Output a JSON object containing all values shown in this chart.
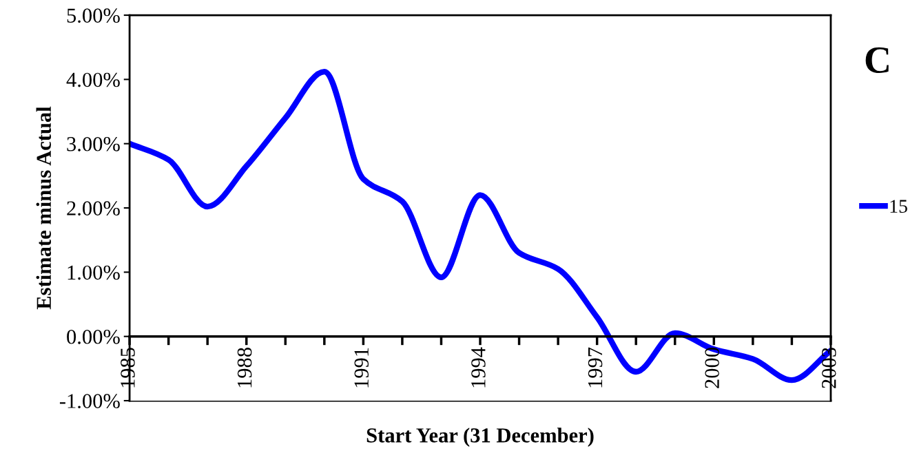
{
  "chart_data": {
    "type": "line",
    "xlabel": "Start Year (31 December)",
    "ylabel": "Estimate minus Actual",
    "x": [
      1985,
      1986,
      1987,
      1988,
      1989,
      1990,
      1991,
      1992,
      1993,
      1994,
      1995,
      1996,
      1997,
      1998,
      1999,
      2000,
      2001,
      2002,
      2003
    ],
    "series": [
      {
        "name": "15",
        "color": "#0000ff",
        "values": [
          3.0,
          2.75,
          2.02,
          2.65,
          3.4,
          4.12,
          2.45,
          2.1,
          0.92,
          2.2,
          1.3,
          1.05,
          0.3,
          -0.55,
          0.05,
          -0.2,
          -0.35,
          -0.68,
          -0.22
        ]
      }
    ],
    "xlim": [
      1985,
      2003
    ],
    "xticks": [
      1985,
      {
        "value": 1986,
        "label": null
      },
      {
        "value": 1987,
        "label": null
      },
      1988,
      {
        "value": 1989,
        "label": null
      },
      {
        "value": 1990,
        "label": null
      },
      1991,
      {
        "value": 1992,
        "label": null
      },
      {
        "value": 1993,
        "label": null
      },
      1994,
      {
        "value": 1995,
        "label": null
      },
      {
        "value": 1996,
        "label": null
      },
      1997,
      {
        "value": 1998,
        "label": null
      },
      {
        "value": 1999,
        "label": null
      },
      2000,
      {
        "value": 2001,
        "label": null
      },
      {
        "value": 2002,
        "label": null
      },
      2003
    ],
    "ylim": [
      -1,
      5
    ],
    "yticks": [
      {
        "value": -1,
        "label": "-1.00%"
      },
      {
        "value": 0,
        "label": "0.00%"
      },
      {
        "value": 1,
        "label": "1.00%"
      },
      {
        "value": 2,
        "label": "2.00%"
      },
      {
        "value": 3,
        "label": "3.00%"
      },
      {
        "value": 4,
        "label": "4.00%"
      },
      {
        "value": 5,
        "label": "5.00%"
      }
    ],
    "annotations": [
      "C"
    ],
    "legend": "right",
    "marker": "none",
    "line_style": "solid",
    "grid": false
  }
}
